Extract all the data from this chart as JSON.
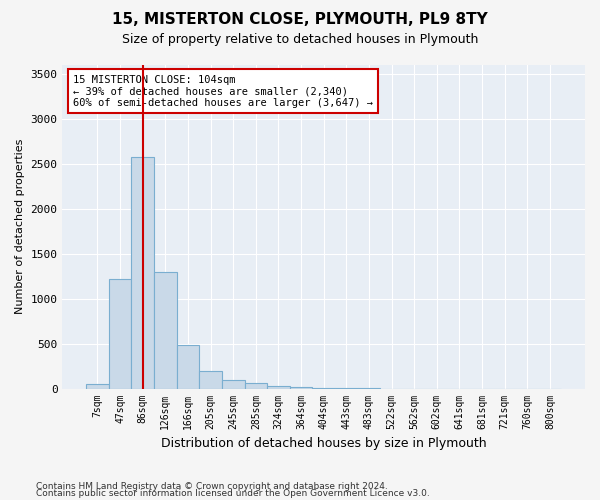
{
  "title1": "15, MISTERTON CLOSE, PLYMOUTH, PL9 8TY",
  "title2": "Size of property relative to detached houses in Plymouth",
  "xlabel": "Distribution of detached houses by size in Plymouth",
  "ylabel": "Number of detached properties",
  "bin_labels": [
    "7sqm",
    "47sqm",
    "86sqm",
    "126sqm",
    "166sqm",
    "205sqm",
    "245sqm",
    "285sqm",
    "324sqm",
    "364sqm",
    "404sqm",
    "443sqm",
    "483sqm",
    "522sqm",
    "562sqm",
    "602sqm",
    "641sqm",
    "681sqm",
    "721sqm",
    "760sqm",
    "800sqm"
  ],
  "bar_values": [
    50,
    1220,
    2580,
    1300,
    480,
    200,
    100,
    60,
    30,
    15,
    5,
    2,
    1,
    0,
    0,
    0,
    0,
    0,
    0,
    0,
    0
  ],
  "bar_color": "#c9d9e8",
  "bar_edge_color": "#7aaed0",
  "bg_color": "#e8eef5",
  "grid_color": "#ffffff",
  "red_line_x": 2,
  "annotation_text": "15 MISTERTON CLOSE: 104sqm\n← 39% of detached houses are smaller (2,340)\n60% of semi-detached houses are larger (3,647) →",
  "annotation_box_color": "#ffffff",
  "annotation_border_color": "#cc0000",
  "ylim": [
    0,
    3600
  ],
  "yticks": [
    0,
    500,
    1000,
    1500,
    2000,
    2500,
    3000,
    3500
  ],
  "footer1": "Contains HM Land Registry data © Crown copyright and database right 2024.",
  "footer2": "Contains public sector information licensed under the Open Government Licence v3.0."
}
